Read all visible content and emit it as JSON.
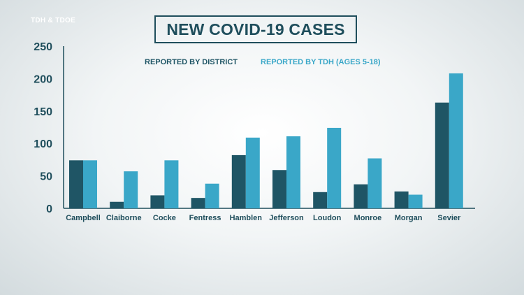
{
  "source": "TDH & TDOE",
  "colors": {
    "district": "#1f5565",
    "tdh": "#3aa7c8",
    "text": "#1f4e5c"
  },
  "chart_data": {
    "type": "bar",
    "title": "NEW COVID-19 CASES",
    "categories": [
      "Campbell",
      "Claiborne",
      "Cocke",
      "Fentress",
      "Hamblen",
      "Jefferson",
      "Loudon",
      "Monroe",
      "Morgan",
      "Sevier"
    ],
    "series": [
      {
        "name": "REPORTED BY DISTRICT",
        "values": [
          74,
          10,
          20,
          16,
          82,
          59,
          25,
          37,
          26,
          163
        ]
      },
      {
        "name": "REPORTED BY TDH  (AGES 5-18)",
        "values": [
          74,
          57,
          74,
          38,
          109,
          111,
          124,
          77,
          21,
          208
        ]
      }
    ],
    "yticks": [
      0,
      50,
      100,
      150,
      200,
      250
    ],
    "ylim": [
      0,
      250
    ],
    "grid": false,
    "legend_position": "top"
  }
}
